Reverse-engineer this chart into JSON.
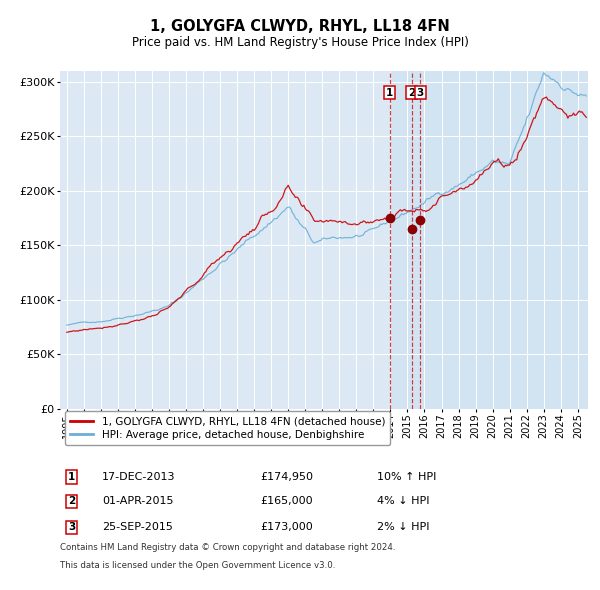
{
  "title": "1, GOLYGFA CLWYD, RHYL, LL18 4FN",
  "subtitle": "Price paid vs. HM Land Registry's House Price Index (HPI)",
  "legend_label_red": "1, GOLYGFA CLWYD, RHYL, LL18 4FN (detached house)",
  "legend_label_blue": "HPI: Average price, detached house, Denbighshire",
  "transactions": [
    {
      "num": 1,
      "date": "17-DEC-2013",
      "date_year": 2013.96,
      "price": 174950,
      "price_str": "£174,950",
      "pct": "10%",
      "dir": "↑"
    },
    {
      "num": 2,
      "date": "01-APR-2015",
      "date_year": 2015.25,
      "price": 165000,
      "price_str": "£165,000",
      "pct": "4%",
      "dir": "↓"
    },
    {
      "num": 3,
      "date": "25-SEP-2015",
      "date_year": 2015.74,
      "price": 173000,
      "price_str": "£173,000",
      "pct": "2%",
      "dir": "↓"
    }
  ],
  "footnote1": "Contains HM Land Registry data © Crown copyright and database right 2024.",
  "footnote2": "This data is licensed under the Open Government Licence v3.0.",
  "ylim": [
    0,
    310000
  ],
  "yticks": [
    0,
    50000,
    100000,
    150000,
    200000,
    250000,
    300000
  ],
  "plot_bg": "#dce9f5",
  "grid_color": "#ffffff",
  "red_line_color": "#cc0000",
  "blue_line_color": "#6baed6",
  "shade_start_year": 2013.96,
  "xlim_left": 1994.6,
  "xlim_right": 2025.6
}
